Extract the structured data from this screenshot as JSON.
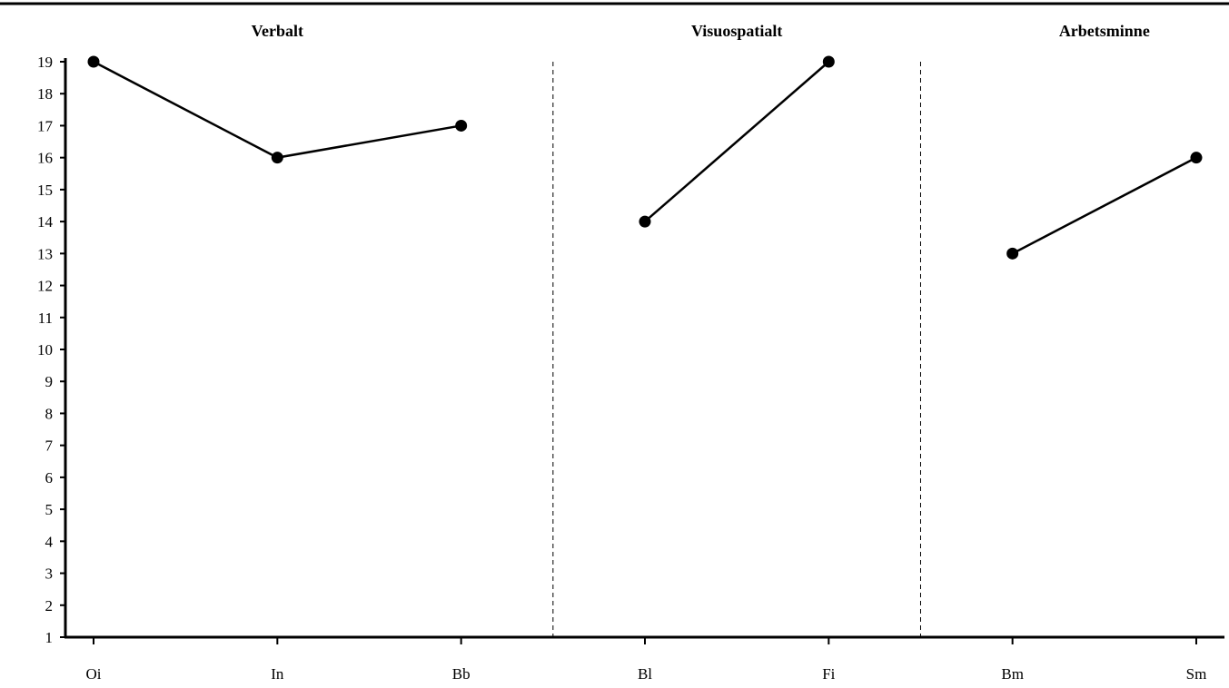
{
  "chart_data": {
    "type": "line",
    "ylim": [
      1,
      19
    ],
    "y_ticks": [
      1,
      2,
      3,
      4,
      5,
      6,
      7,
      8,
      9,
      10,
      11,
      12,
      13,
      14,
      15,
      16,
      17,
      18,
      19
    ],
    "grid": false,
    "categories": [
      "Oi",
      "In",
      "Bb",
      "Bl",
      "Fi",
      "Bm",
      "Sm"
    ],
    "groups": [
      {
        "label": "Verbalt",
        "categories": [
          "Oi",
          "In",
          "Bb"
        ],
        "values": [
          19,
          16,
          17
        ]
      },
      {
        "label": "Visuospatialt",
        "categories": [
          "Bl",
          "Fi"
        ],
        "values": [
          14,
          19
        ]
      },
      {
        "label": "Arbetsminne",
        "categories": [
          "Bm",
          "Sm"
        ],
        "values": [
          13,
          16
        ]
      }
    ],
    "marker": "filled-circle",
    "line_color": "#000000",
    "separators": "dashed vertical lines between groups"
  }
}
